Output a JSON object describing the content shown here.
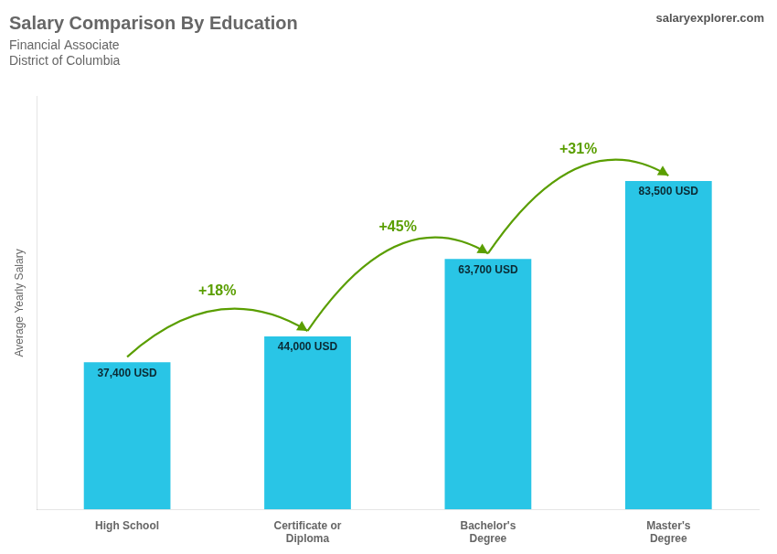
{
  "chart_data": {
    "type": "bar",
    "title": "Salary Comparison By Education",
    "subtitle": [
      "Financial Associate",
      "District of Columbia"
    ],
    "annotations": [
      "salaryexplorer.com"
    ],
    "ylabel": "Average Yearly Salary",
    "categories": [
      "High School",
      "Certificate or\nDiploma",
      "Bachelor's\nDegree",
      "Master's\nDegree"
    ],
    "values": [
      37400,
      44000,
      63700,
      83500
    ],
    "value_labels": [
      "37,400 USD",
      "44,000 USD",
      "63,700 USD",
      "83,500 USD"
    ],
    "data_labels": true,
    "change_labels": [
      "+18%",
      "+45%",
      "+31%"
    ],
    "color": "#29c5e6",
    "ylim": [
      0,
      105000
    ],
    "grid": false,
    "tick_labels": "x"
  }
}
